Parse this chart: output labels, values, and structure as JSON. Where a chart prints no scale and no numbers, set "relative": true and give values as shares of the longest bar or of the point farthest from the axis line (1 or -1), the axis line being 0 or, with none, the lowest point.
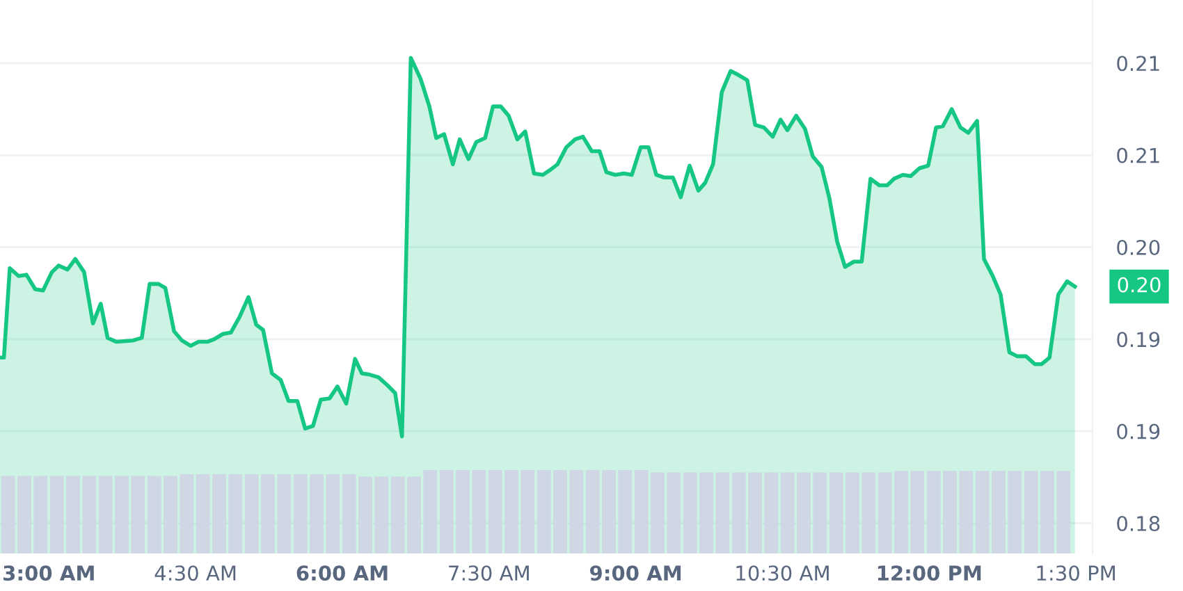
{
  "chart_data": [
    {
      "type": "area",
      "x": [
        2.5,
        2.54,
        2.6,
        2.69,
        2.77,
        2.86,
        2.94,
        3.03,
        3.1,
        3.19,
        3.27,
        3.36,
        3.45,
        3.53,
        3.6,
        3.69,
        3.86,
        3.95,
        4.03,
        4.12,
        4.19,
        4.28,
        4.36,
        4.45,
        4.53,
        4.62,
        4.69,
        4.78,
        4.86,
        4.95,
        5.04,
        5.12,
        5.19,
        5.28,
        5.37,
        5.45,
        5.54,
        5.62,
        5.7,
        5.78,
        5.87,
        5.95,
        6.04,
        6.13,
        6.2,
        6.28,
        6.37,
        6.46,
        6.54,
        6.61,
        6.7,
        6.8,
        6.89,
        6.96,
        7.04,
        7.13,
        7.2,
        7.29,
        7.37,
        7.46,
        7.54,
        7.62,
        7.7,
        7.79,
        7.87,
        7.96,
        8.05,
        8.13,
        8.2,
        8.29,
        8.38,
        8.46,
        8.55,
        8.63,
        8.7,
        8.79,
        8.88,
        8.96,
        9.05,
        9.13,
        9.21,
        9.29,
        9.38,
        9.46,
        9.55,
        9.64,
        9.71,
        9.79,
        9.88,
        9.97,
        10.05,
        10.14,
        10.22,
        10.31,
        10.4,
        10.48,
        10.55,
        10.64,
        10.73,
        10.81,
        10.9,
        10.98,
        11.06,
        11.14,
        11.23,
        11.31,
        11.4,
        11.49,
        11.57,
        11.64,
        11.73,
        11.81,
        11.9,
        11.99,
        12.07,
        12.14,
        12.23,
        12.32,
        12.4,
        12.49,
        12.56,
        12.65,
        12.73,
        12.82,
        12.9,
        12.99,
        13.08,
        13.15,
        13.23,
        13.32,
        13.41,
        13.49
      ],
      "series": [
        {
          "color": "#16c784",
          "values": [
            0.1906,
            0.1906,
            0.1974,
            0.1968,
            0.1969,
            0.1958,
            0.1957,
            0.1971,
            0.1976,
            0.1973,
            0.1981,
            0.1971,
            0.1932,
            0.1947,
            0.1921,
            0.1918,
            0.1919,
            0.1921,
            0.1962,
            0.1962,
            0.1959,
            0.1926,
            0.1919,
            0.1915,
            0.1918,
            0.1918,
            0.192,
            0.1924,
            0.1925,
            0.1937,
            0.1952,
            0.1931,
            0.1927,
            0.1894,
            0.1889,
            0.1873,
            0.1873,
            0.1852,
            0.1854,
            0.1874,
            0.1875,
            0.1884,
            0.1871,
            0.1905,
            0.1894,
            0.1893,
            0.1891,
            0.1885,
            0.1879,
            0.1846,
            0.2134,
            0.2118,
            0.2097,
            0.2073,
            0.2076,
            0.2053,
            0.2072,
            0.2057,
            0.207,
            0.2073,
            0.2097,
            0.2097,
            0.209,
            0.2072,
            0.2078,
            0.2046,
            0.2045,
            0.2049,
            0.2053,
            0.2066,
            0.2072,
            0.2074,
            0.2063,
            0.2063,
            0.2047,
            0.2045,
            0.2046,
            0.2045,
            0.2066,
            0.2066,
            0.2045,
            0.2043,
            0.2043,
            0.2028,
            0.2052,
            0.2033,
            0.2039,
            0.2053,
            0.2108,
            0.2124,
            0.2121,
            0.2117,
            0.2083,
            0.2081,
            0.2074,
            0.2087,
            0.2079,
            0.209,
            0.208,
            0.2059,
            0.2051,
            0.2027,
            0.1994,
            0.1975,
            0.1979,
            0.1979,
            0.2042,
            0.2037,
            0.2037,
            0.2042,
            0.2045,
            0.2044,
            0.205,
            0.2052,
            0.2081,
            0.2082,
            0.2095,
            0.2081,
            0.2077,
            0.2086,
            0.1981,
            0.1968,
            0.1954,
            0.191,
            0.1907,
            0.1907,
            0.1901,
            0.1901,
            0.1906,
            0.1954,
            0.1964,
            0.196
          ]
        }
      ],
      "xlim": [
        2.5,
        13.67
      ],
      "xticks": [
        {
          "value": 3,
          "label": "3:00 AM"
        },
        {
          "value": 4.5,
          "label": "4:30 AM"
        },
        {
          "value": 6,
          "label": "6:00 AM"
        },
        {
          "value": 7.5,
          "label": "7:30 AM"
        },
        {
          "value": 9,
          "label": "9:00 AM"
        },
        {
          "value": 10.5,
          "label": "10:30 AM"
        },
        {
          "value": 12,
          "label": "12:00 PM"
        },
        {
          "value": 13.5,
          "label": "1:30 PM"
        }
      ],
      "ylim": [
        0.1757,
        0.2178
      ],
      "yticks": [
        {
          "value": 0.178,
          "label": "0.18"
        },
        {
          "value": 0.185,
          "label": "0.19"
        },
        {
          "value": 0.192,
          "label": "0.19"
        },
        {
          "value": 0.199,
          "label": "0.20"
        },
        {
          "value": 0.206,
          "label": "0.21"
        },
        {
          "value": 0.213,
          "label": "0.21"
        }
      ],
      "grid": "y",
      "annotations": [
        "0.20"
      ]
    },
    {
      "type": "bar",
      "relative": true,
      "color": "#cfd6e4",
      "categories": [
        null,
        null,
        null,
        null,
        null,
        null,
        null,
        null,
        null,
        null,
        null,
        null,
        null,
        null,
        null,
        null,
        null,
        null,
        null,
        null,
        null,
        null,
        null,
        null,
        null,
        null,
        null,
        null,
        null,
        null,
        null,
        null,
        null,
        null,
        null,
        null,
        null,
        null,
        null,
        null,
        null,
        null,
        null,
        null,
        null,
        null,
        null,
        null,
        null,
        null,
        null,
        null,
        null,
        null,
        null,
        null,
        null,
        null,
        null,
        null,
        null,
        null,
        null,
        null,
        null,
        null
      ],
      "values": [
        0.93,
        0.93,
        0.93,
        0.93,
        0.93,
        0.93,
        0.93,
        0.93,
        0.93,
        0.93,
        0.93,
        0.95,
        0.95,
        0.95,
        0.95,
        0.95,
        0.95,
        0.95,
        0.95,
        0.95,
        0.95,
        0.95,
        0.92,
        0.92,
        0.92,
        0.92,
        1,
        1,
        1,
        1,
        1,
        1,
        1,
        1,
        1,
        1,
        1,
        1,
        1,
        1,
        0.97,
        0.97,
        0.97,
        0.97,
        0.97,
        0.97,
        0.97,
        0.97,
        0.97,
        0.97,
        0.97,
        0.97,
        0.97,
        0.97,
        0.97,
        0.99,
        0.99,
        0.99,
        0.99,
        0.99,
        0.99,
        0.99,
        0.99,
        0.99,
        0.99,
        0.99
      ]
    }
  ]
}
